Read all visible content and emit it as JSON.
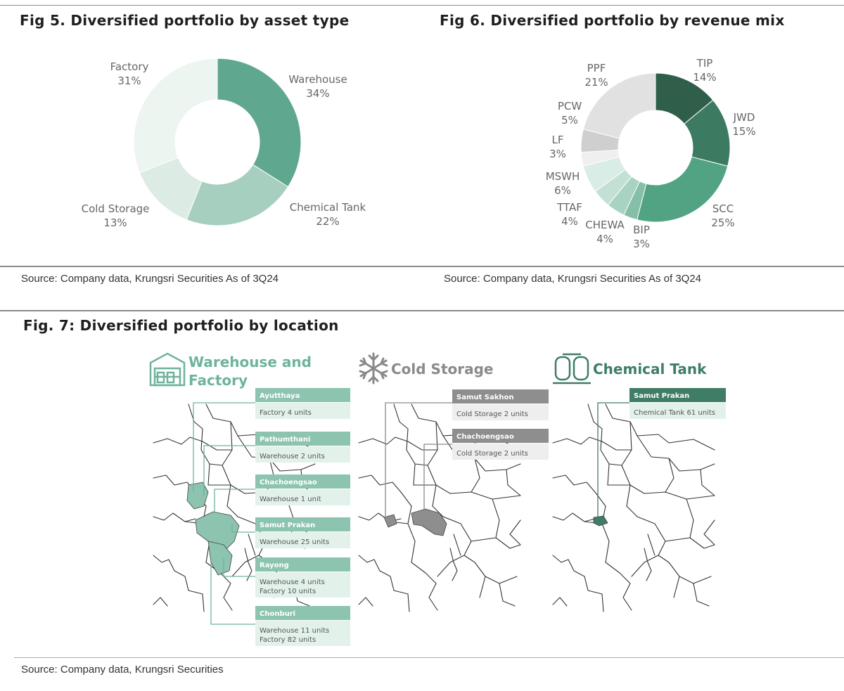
{
  "chart_data": [
    {
      "type": "pie",
      "variant": "donut",
      "title": "Fig 5. Diversified portfolio by asset type",
      "source": "Source: Company data, Krungsri Securities  As of 3Q24",
      "slices": [
        {
          "label": "Warehouse",
          "pct_label": "34%",
          "value": 34,
          "color": "#5fa88f"
        },
        {
          "label": "Chemical Tank",
          "pct_label": "22%",
          "value": 22,
          "color": "#a6cfbf"
        },
        {
          "label": "Cold Storage",
          "pct_label": "13%",
          "value": 13,
          "color": "#dcece5"
        },
        {
          "label": "Factory",
          "pct_label": "31%",
          "value": 31,
          "color": "#edf5f1"
        }
      ]
    },
    {
      "type": "pie",
      "variant": "donut",
      "title": "Fig 6. Diversified portfolio by revenue mix",
      "source": "Source: Company data, Krungsri Securities    As of 3Q24",
      "slices": [
        {
          "label": "TIP",
          "pct_label": "14%",
          "value": 14,
          "color": "#2f5e4b"
        },
        {
          "label": "JWD",
          "pct_label": "15%",
          "value": 15,
          "color": "#3c7b62"
        },
        {
          "label": "SCC",
          "pct_label": "25%",
          "value": 25,
          "color": "#52a384"
        },
        {
          "label": "BIP",
          "pct_label": "3%",
          "value": 3,
          "color": "#85bfa7"
        },
        {
          "label": "CHEWA",
          "pct_label": "4%",
          "value": 4,
          "color": "#a8d2c1"
        },
        {
          "label": "TTAF",
          "pct_label": "4%",
          "value": 4,
          "color": "#c3e0d4"
        },
        {
          "label": "MSWH",
          "pct_label": "6%",
          "value": 6,
          "color": "#d9ece5"
        },
        {
          "label": "LF",
          "pct_label": "3%",
          "value": 3,
          "color": "#efefef"
        },
        {
          "label": "PCW",
          "pct_label": "5%",
          "value": 5,
          "color": "#cfcfcf"
        },
        {
          "label": "PPF",
          "pct_label": "21%",
          "value": 21,
          "color": "#e1e1e1"
        }
      ]
    }
  ],
  "fig7": {
    "title": "Fig. 7: Diversified portfolio by location",
    "source": "Source: Company data, Krungsri Securities",
    "panels": [
      {
        "title_line1": "Warehouse and",
        "title_line2": "Factory",
        "icon": "warehouse-icon",
        "color": "#6fb39b",
        "header_color": "#8cc4b0",
        "boxes": [
          {
            "head": "Ayutthaya",
            "lines": [
              "Factory 4 units"
            ]
          },
          {
            "head": "Pathumthani",
            "lines": [
              "Warehouse 2 units"
            ]
          },
          {
            "head": "Chachoengsao",
            "lines": [
              "Warehouse 1 unit"
            ]
          },
          {
            "head": "Samut Prakan",
            "lines": [
              "Warehouse 25 units"
            ]
          },
          {
            "head": "Rayong",
            "lines": [
              "Warehouse 4 units",
              "Factory 10 units"
            ]
          },
          {
            "head": "Chonburi",
            "lines": [
              "Warehouse 11 units",
              "Factory 82 units"
            ]
          }
        ]
      },
      {
        "title_line1": "Cold Storage",
        "icon": "snowflake-icon",
        "color": "#8a8a8a",
        "header_color": "#8e8e8e",
        "boxes": [
          {
            "head": "Samut Sakhon",
            "lines": [
              "Cold Storage 2 units"
            ]
          },
          {
            "head": "Chachoengsao",
            "lines": [
              "Cold Storage 2 units"
            ]
          }
        ]
      },
      {
        "title_line1": "Chemical Tank",
        "icon": "chemical-tank-icon",
        "color": "#3f7d66",
        "header_color": "#3f7d66",
        "boxes": [
          {
            "head": "Samut Prakan",
            "lines": [
              "Chemical Tank 61 units"
            ]
          }
        ]
      }
    ]
  },
  "colors": {
    "box_body": "#e3f1eb",
    "box_body_grey": "#eeeeee",
    "map_line": "#333333",
    "rule": "#8a8a8a"
  }
}
